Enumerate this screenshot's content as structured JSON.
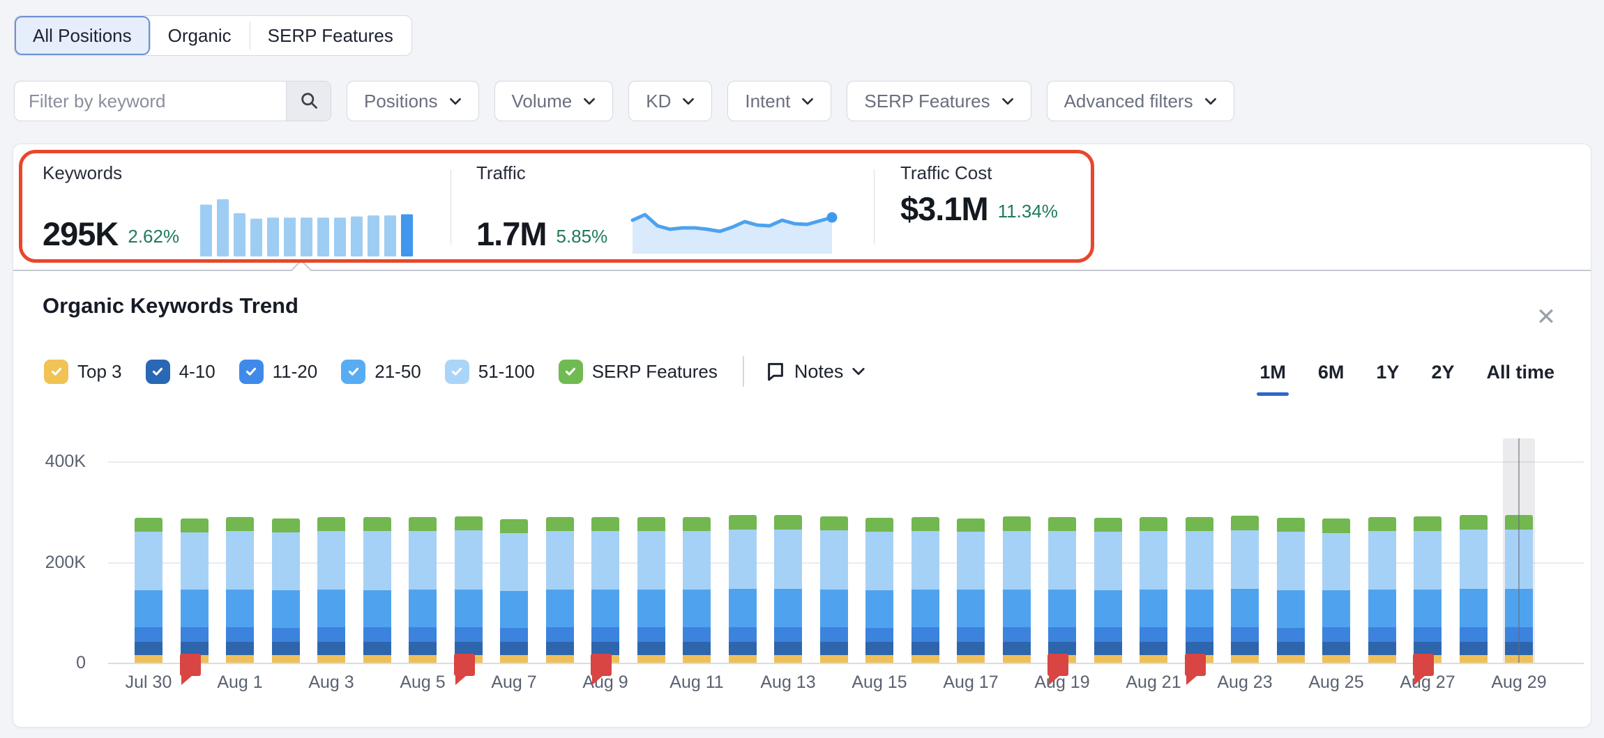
{
  "view_tabs": {
    "items": [
      {
        "label": "All Positions",
        "selected": true
      },
      {
        "label": "Organic",
        "selected": false
      },
      {
        "label": "SERP Features",
        "selected": false
      }
    ]
  },
  "filter_bar": {
    "keyword_placeholder": "Filter by keyword",
    "search_icon": "magnifier-icon",
    "dropdowns": [
      "Positions",
      "Volume",
      "KD",
      "Intent",
      "SERP Features",
      "Advanced filters"
    ]
  },
  "stats": {
    "highlight_color": "#e8472c",
    "change_color": "#1e7b5a",
    "keywords": {
      "label": "Keywords",
      "value": "295K",
      "change": "2.62%",
      "trend_bars": [
        48,
        53,
        40,
        35,
        36,
        36,
        36,
        36,
        36,
        37,
        38,
        38,
        39
      ],
      "bar_color": "#9ecdf3",
      "bar_color_last": "#3f97ee"
    },
    "traffic": {
      "label": "Traffic",
      "value": "1.7M",
      "change": "5.85%",
      "sparkline": [
        22,
        14,
        30,
        35,
        33,
        33,
        35,
        38,
        32,
        24,
        29,
        30,
        22,
        27,
        28,
        23,
        18
      ],
      "line_color": "#4da2ee",
      "fill_color": "#d9eafc",
      "dot_color": "#3f97ee"
    },
    "traffic_cost": {
      "label": "Traffic Cost",
      "value": "$3.1M",
      "change": "11.34%"
    }
  },
  "panel": {
    "title": "Organic Keywords Trend",
    "notes_label": "Notes",
    "ranges": {
      "items": [
        "1M",
        "6M",
        "1Y",
        "2Y",
        "All time"
      ],
      "selected": "1M",
      "underline_color": "#2f66c7"
    },
    "legend": [
      {
        "label": "Top 3",
        "color": "#f1c254",
        "checked": true
      },
      {
        "label": "4-10",
        "color": "#2a67b5",
        "checked": true
      },
      {
        "label": "11-20",
        "color": "#3f8ae8",
        "checked": true
      },
      {
        "label": "21-50",
        "color": "#57acf2",
        "checked": true
      },
      {
        "label": "51-100",
        "color": "#abd5f8",
        "checked": true
      },
      {
        "label": "SERP Features",
        "color": "#6fbb52",
        "checked": true
      }
    ]
  },
  "chart_data": {
    "type": "bar",
    "stacked": true,
    "unit": "K keywords",
    "title": "Organic Keywords Trend",
    "grid": true,
    "ylim": [
      0,
      440
    ],
    "yticks": [
      {
        "value": 0,
        "label": "0"
      },
      {
        "value": 200,
        "label": "200K"
      },
      {
        "value": 400,
        "label": "400K"
      }
    ],
    "x_label_every": 2,
    "categories": [
      "Jul 30",
      "Jul 31",
      "Aug 1",
      "Aug 2",
      "Aug 3",
      "Aug 4",
      "Aug 5",
      "Aug 6",
      "Aug 7",
      "Aug 8",
      "Aug 9",
      "Aug 10",
      "Aug 11",
      "Aug 12",
      "Aug 13",
      "Aug 14",
      "Aug 15",
      "Aug 16",
      "Aug 17",
      "Aug 18",
      "Aug 19",
      "Aug 20",
      "Aug 21",
      "Aug 22",
      "Aug 23",
      "Aug 24",
      "Aug 25",
      "Aug 26",
      "Aug 27",
      "Aug 28",
      "Aug 29"
    ],
    "series": [
      {
        "name": "Top 3",
        "color": "#efc05a",
        "values": [
          15,
          15,
          15,
          15,
          15,
          15,
          15,
          15,
          15,
          15,
          15,
          15,
          15,
          15,
          15,
          15,
          15,
          15,
          15,
          15,
          15,
          15,
          15,
          15,
          15,
          15,
          15,
          15,
          15,
          15,
          15
        ]
      },
      {
        "name": "4-10",
        "color": "#2e66ad",
        "values": [
          27,
          27,
          27,
          26,
          27,
          27,
          27,
          27,
          26,
          27,
          27,
          27,
          27,
          27,
          27,
          27,
          26,
          27,
          27,
          27,
          27,
          27,
          27,
          27,
          27,
          26,
          27,
          27,
          27,
          27,
          27
        ]
      },
      {
        "name": "11-20",
        "color": "#3c83de",
        "values": [
          28,
          28,
          29,
          28,
          28,
          28,
          28,
          29,
          28,
          28,
          28,
          29,
          28,
          28,
          28,
          28,
          28,
          28,
          29,
          28,
          28,
          28,
          28,
          29,
          28,
          28,
          28,
          28,
          28,
          29,
          29
        ]
      },
      {
        "name": "21-50",
        "color": "#4fa3ee",
        "values": [
          74,
          75,
          74,
          75,
          75,
          74,
          75,
          75,
          74,
          75,
          75,
          74,
          75,
          76,
          76,
          76,
          75,
          75,
          74,
          75,
          75,
          74,
          75,
          75,
          76,
          75,
          74,
          75,
          75,
          76,
          76
        ]
      },
      {
        "name": "51-100",
        "color": "#a6d1f6",
        "values": [
          116,
          114,
          116,
          115,
          116,
          117,
          116,
          117,
          115,
          116,
          117,
          116,
          117,
          118,
          118,
          117,
          116,
          117,
          115,
          117,
          117,
          116,
          117,
          116,
          117,
          116,
          114,
          116,
          117,
          118,
          118
        ]
      },
      {
        "name": "SERP Features",
        "color": "#72b750",
        "values": [
          28,
          27,
          28,
          28,
          28,
          28,
          29,
          28,
          27,
          28,
          28,
          28,
          28,
          29,
          29,
          28,
          28,
          28,
          27,
          29,
          28,
          28,
          28,
          28,
          29,
          28,
          28,
          28,
          29,
          29,
          29
        ]
      }
    ],
    "note_flags": {
      "color": "#d84543",
      "dates": [
        "Jul 31",
        "Aug 6",
        "Aug 9",
        "Aug 19",
        "Aug 22",
        "Aug 27"
      ]
    },
    "highlighted_date": "Aug 29",
    "legend_position": "top-left"
  }
}
